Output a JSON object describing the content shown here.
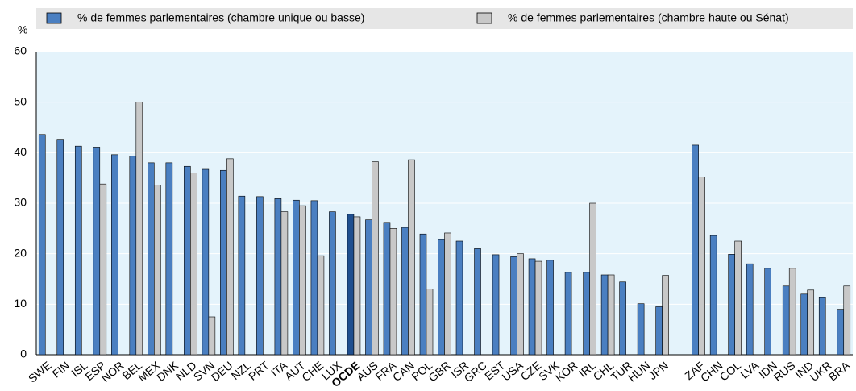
{
  "chart_data": {
    "type": "bar",
    "y_label": "%",
    "categories": [
      "SWE",
      "FIN",
      "ISL",
      "ESP",
      "NOR",
      "BEL",
      "MEX",
      "DNK",
      "NLD",
      "SVN",
      "DEU",
      "NZL",
      "PRT",
      "ITA",
      "AUT",
      "CHE",
      "LUX",
      "OCDE",
      "AUS",
      "FRA",
      "CAN",
      "POL",
      "GBR",
      "ISR",
      "GRC",
      "EST",
      "USA",
      "CZE",
      "SVK",
      "KOR",
      "IRL",
      "CHL",
      "TUR",
      "HUN",
      "JPN",
      null,
      "ZAF",
      "CHN",
      "COL",
      "LVA",
      "IDN",
      "RUS",
      "IND",
      "UKR",
      "BRA"
    ],
    "series": [
      {
        "name": "% de femmes parlementaires (chambre unique ou basse)",
        "color": "#4a7fc1",
        "values": [
          43.6,
          42.5,
          41.3,
          41.1,
          39.6,
          39.3,
          38.0,
          38.0,
          37.3,
          36.7,
          36.5,
          31.4,
          31.3,
          30.9,
          30.6,
          30.5,
          28.3,
          27.8,
          26.7,
          26.2,
          25.2,
          23.9,
          22.8,
          22.5,
          21.0,
          19.8,
          19.4,
          19.0,
          18.7,
          16.3,
          16.3,
          15.8,
          14.4,
          10.1,
          9.5,
          null,
          41.5,
          23.6,
          19.9,
          18.0,
          17.1,
          13.6,
          12.0,
          11.3,
          9.0
        ]
      },
      {
        "name": "% de femmes parlementaires (chambre haute ou Sénat)",
        "color": "#c8c8c8",
        "values": [
          null,
          null,
          null,
          33.8,
          null,
          50.0,
          33.6,
          null,
          36.0,
          7.5,
          38.8,
          null,
          null,
          28.3,
          29.5,
          19.6,
          null,
          27.3,
          38.2,
          25.0,
          38.6,
          13.0,
          24.1,
          null,
          null,
          null,
          20.0,
          18.5,
          null,
          null,
          30.0,
          15.8,
          null,
          null,
          15.7,
          null,
          35.2,
          null,
          22.5,
          null,
          null,
          17.1,
          12.8,
          null,
          13.6
        ]
      }
    ],
    "highlight": "OCDE",
    "highlight_color": "#1f4f8f",
    "ylim": [
      0,
      60
    ],
    "yticks": [
      0,
      10,
      20,
      30,
      40,
      50,
      60
    ],
    "grid": true
  }
}
